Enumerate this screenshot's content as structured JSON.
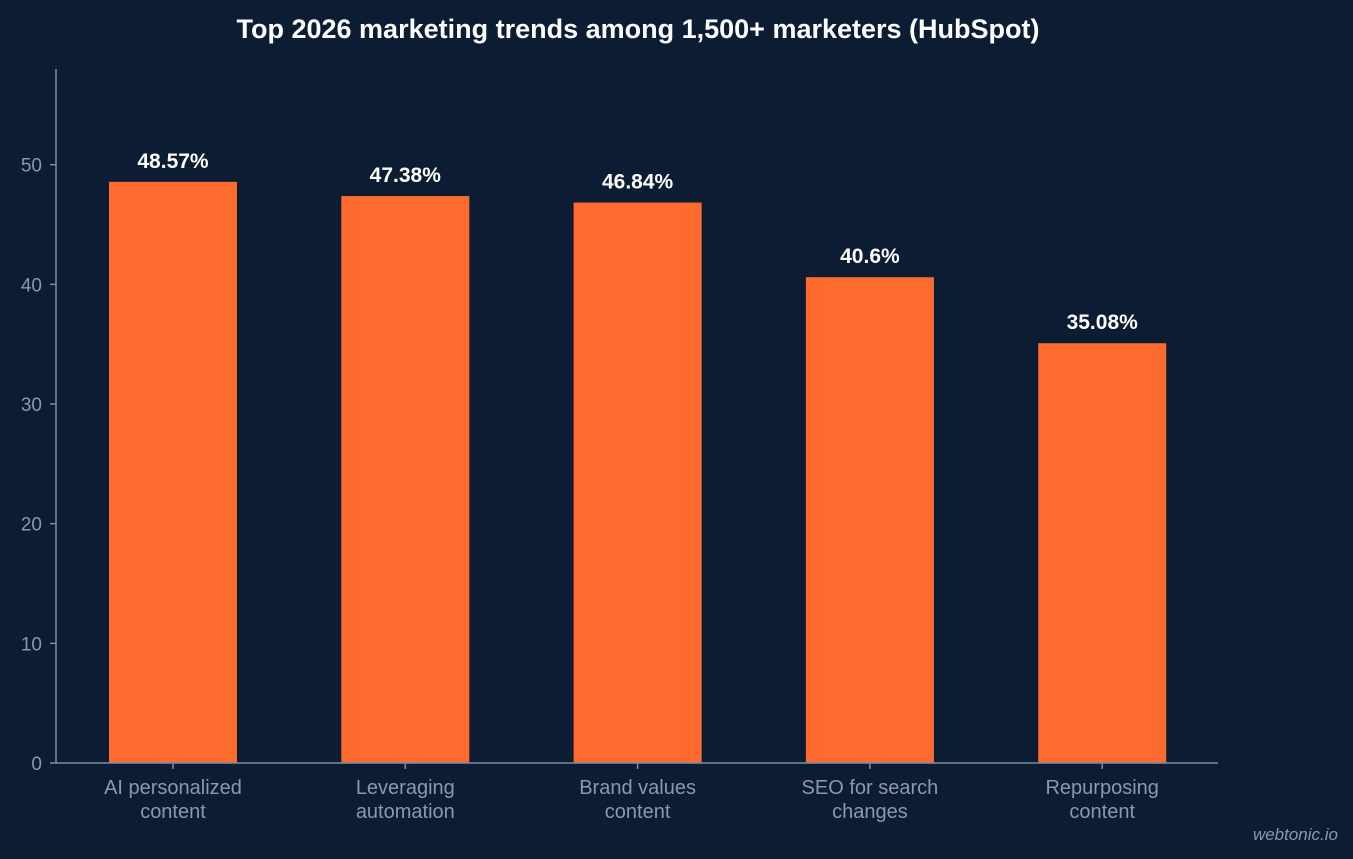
{
  "chart_data": {
    "type": "bar",
    "title": "Top 2026 marketing trends among 1,500+ marketers (HubSpot)",
    "categories": [
      [
        "AI personalized",
        "content"
      ],
      [
        "Leveraging",
        "automation"
      ],
      [
        "Brand values",
        "content"
      ],
      [
        "SEO for search",
        "changes"
      ],
      [
        "Repurposing",
        "content"
      ]
    ],
    "values": [
      48.57,
      47.38,
      46.84,
      40.6,
      35.08
    ],
    "data_labels": [
      "48.57%",
      "47.38%",
      "46.84%",
      "40.6%",
      "35.08%"
    ],
    "yticks": [
      0,
      10,
      20,
      30,
      40,
      50
    ],
    "ylim": [
      0,
      58
    ],
    "xlabel": "",
    "ylabel": "",
    "grid": false,
    "bar_color": "#ff6b2f",
    "background_color": "#0c1c33",
    "axis_color": "#7d8ba3",
    "tick_color": "#8898b2"
  },
  "watermark": "webtonic.io"
}
